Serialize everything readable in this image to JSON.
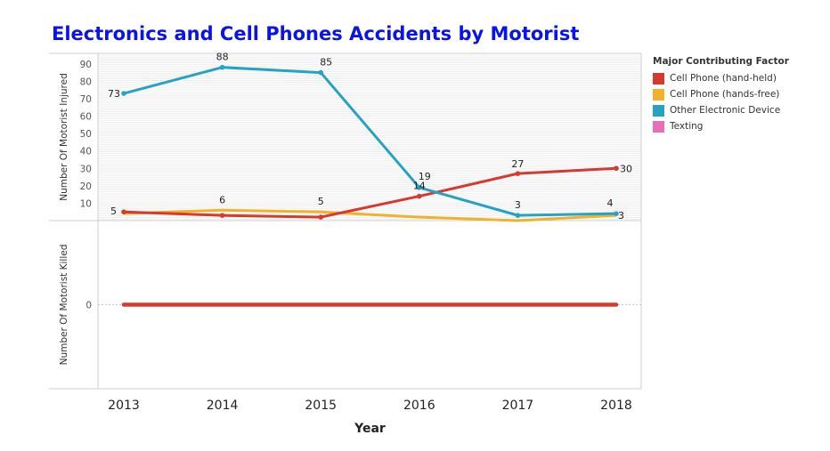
{
  "chart_data": {
    "type": "line",
    "title": "Electronics and Cell Phones Accidents by Motorist",
    "xlabel": "Year",
    "x": [
      2013,
      2014,
      2015,
      2016,
      2017,
      2018
    ],
    "legend": {
      "title": "Major Contributing Factor",
      "placement": "right"
    },
    "panels": [
      {
        "ylabel": "Number Of Motorist Injured",
        "ylim": [
          0,
          95
        ],
        "yticks": [
          10,
          20,
          30,
          40,
          50,
          60,
          70,
          80,
          90
        ],
        "grid": true,
        "series": [
          {
            "name": "Cell Phone (hand-held)",
            "color": "#d63a2f",
            "values": [
              5,
              3,
              2,
              14,
              27,
              30
            ],
            "labels": [
              "5",
              "",
              "",
              "14",
              "27",
              "30"
            ],
            "markers": true
          },
          {
            "name": "Cell Phone (hands-free)",
            "color": "#f2b12b",
            "values": [
              4,
              6,
              5,
              2,
              0,
              3
            ],
            "labels": [
              "",
              "6",
              "5",
              "",
              "",
              "3"
            ],
            "markers": false
          },
          {
            "name": "Other Electronic Device",
            "color": "#26a3c4",
            "values": [
              73,
              88,
              85,
              19,
              3,
              4
            ],
            "labels": [
              "73",
              "88",
              "85",
              "19",
              "3",
              "4"
            ],
            "markers": true
          },
          {
            "name": "Texting",
            "color": "#e86fb5",
            "values": [
              null,
              null,
              null,
              null,
              null,
              null
            ],
            "labels": [
              "",
              "",
              "",
              "",
              "",
              ""
            ],
            "markers": false
          }
        ]
      },
      {
        "ylabel": "Number Of Motorist Killed",
        "ylim": [
          -1,
          1
        ],
        "yticks": [
          0
        ],
        "grid": false,
        "series": [
          {
            "name": "Cell Phone (hand-held)",
            "color": "#d63a2f",
            "values": [
              0,
              0,
              0,
              0,
              0,
              0
            ]
          }
        ]
      }
    ]
  }
}
